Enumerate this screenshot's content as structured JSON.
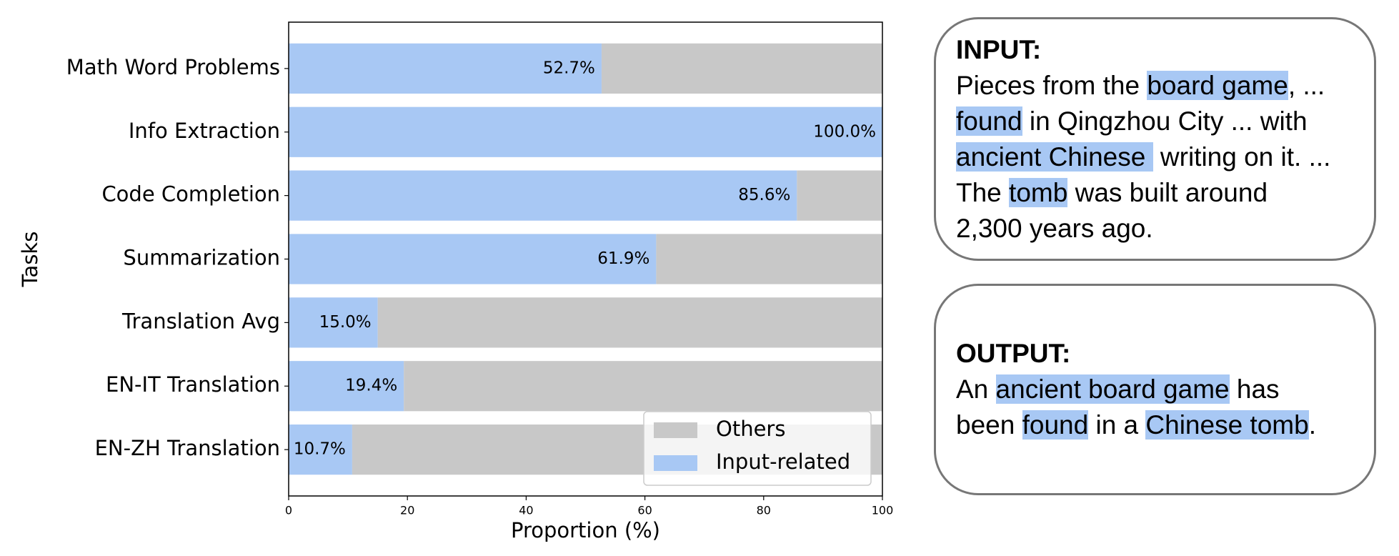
{
  "chart_data": {
    "type": "stacked-barh",
    "categories": [
      "Math Word Problems",
      "Info Extraction",
      "Code Completion",
      "Summarization",
      "Translation Avg",
      "EN-IT Translation",
      "EN-ZH Translation"
    ],
    "series": [
      {
        "name": "Input-related",
        "color": "#a8c8f4",
        "values": [
          52.7,
          100.0,
          85.6,
          61.9,
          15.0,
          19.4,
          10.7
        ],
        "value_labels": [
          "52.7%",
          "100.0%",
          "85.6%",
          "61.9%",
          "15.0%",
          "19.4%",
          "10.7%"
        ]
      },
      {
        "name": "Others",
        "color": "#c8c8c8",
        "values": [
          47.3,
          0.0,
          14.4,
          38.1,
          85.0,
          80.6,
          89.3
        ]
      }
    ],
    "xlabel": "Proportion (%)",
    "ylabel": "Tasks",
    "xlim": [
      0,
      100
    ],
    "xticks": [
      0,
      20,
      40,
      60,
      80,
      100
    ],
    "legend": "lower right"
  },
  "panels": [
    {
      "title": "INPUT:",
      "lines": [
        [
          {
            "text": "Pieces from the ",
            "highlight": false
          },
          {
            "text": "board game",
            "highlight": true
          },
          {
            "text": ", ...",
            "highlight": false
          }
        ],
        [
          {
            "text": "found",
            "highlight": true
          },
          {
            "text": " in Qingzhou City ... with",
            "highlight": false
          }
        ],
        [
          {
            "text": "ancient Chinese ",
            "highlight": true
          },
          {
            "text": " writing on it. ...",
            "highlight": false
          }
        ],
        [
          {
            "text": "The ",
            "highlight": false
          },
          {
            "text": "tomb",
            "highlight": true
          },
          {
            "text": " was built around",
            "highlight": false
          }
        ],
        [
          {
            "text": "2,300 years ago.",
            "highlight": false
          }
        ]
      ]
    },
    {
      "title": "OUTPUT:",
      "lines": [
        [
          {
            "text": "An ",
            "highlight": false
          },
          {
            "text": "ancient board game",
            "highlight": true
          },
          {
            "text": " has",
            "highlight": false
          }
        ],
        [
          {
            "text": "been ",
            "highlight": false
          },
          {
            "text": "found",
            "highlight": true
          },
          {
            "text": " in a ",
            "highlight": false
          },
          {
            "text": "Chinese tomb",
            "highlight": true
          },
          {
            "text": ".",
            "highlight": false
          }
        ]
      ]
    }
  ]
}
